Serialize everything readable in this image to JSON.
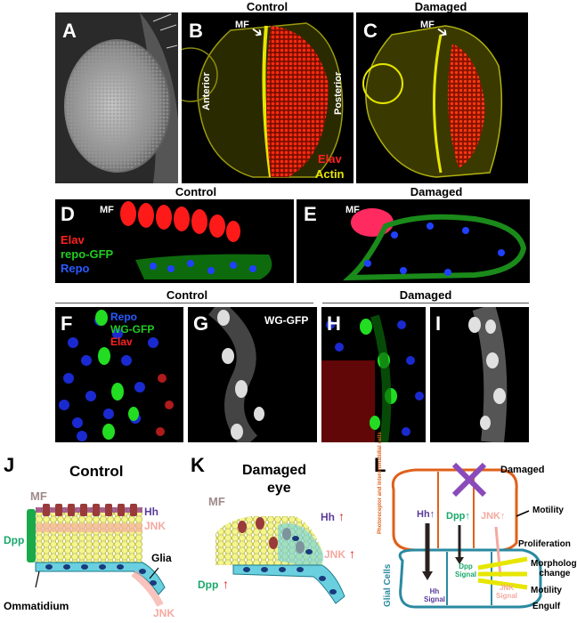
{
  "figure": {
    "panels": {
      "A": "A",
      "B": "B",
      "C": "C",
      "D": "D",
      "E": "E",
      "F": "F",
      "G": "G",
      "H": "H",
      "I": "I",
      "J": "J",
      "K": "K",
      "L": "L"
    },
    "headers": {
      "control_top": "Control",
      "damaged_top": "Damaged",
      "control_de": "Control",
      "damaged_de": "Damaged",
      "control_fg": "Control",
      "damaged_hi": "Damaged"
    },
    "panel_b": {
      "mf": "MF",
      "anterior": "Anterior",
      "posterior": "Posterior",
      "elav": "Elav",
      "actin": "Actin"
    },
    "panel_c": {
      "mf": "MF"
    },
    "panel_d": {
      "mf": "MF",
      "elav": "Elav",
      "repo_gfp": "repo-GFP",
      "repo": "Repo"
    },
    "panel_e": {
      "mf": "MF"
    },
    "panel_f": {
      "repo": "Repo",
      "wg_gfp": "WG-GFP",
      "elav": "Elav"
    },
    "panel_g": {
      "wg_gfp": "WG-GFP"
    },
    "panel_j": {
      "title": "Control",
      "mf": "MF",
      "hh": "Hh",
      "jnk": "JNK",
      "dpp": "Dpp",
      "glia": "Glia",
      "ommatidium": "Ommatidium",
      "jnk_bottom": "JNK"
    },
    "panel_k": {
      "title_line1": "Damaged",
      "title_line2": "eye",
      "mf": "MF",
      "hh": "Hh",
      "jnk": "JNK",
      "dpp": "Dpp",
      "arrow": "↑"
    },
    "panel_l": {
      "damaged": "Damaged",
      "photoreceptor_label": "Photoreceptor and interommatidial cells",
      "glial_cells": "Glial Cells",
      "hh": "Hh↑",
      "dpp": "Dpp↑",
      "jnk": "JNK↑",
      "hh_signal": "Hh Signal",
      "dpp_signal": "Dpp Signal",
      "jnk_signal": "JNK Signal",
      "motility_top": "Motility",
      "proliferation": "Proliferation",
      "morphology": "Morphology change",
      "motility": "Motility",
      "engulf": "Engulf"
    },
    "colors": {
      "elav": "#ff2020",
      "actin": "#e6e600",
      "gfp": "#22cc22",
      "repo": "#2040ff",
      "hh": "#5a3c9a",
      "dpp": "#1aa86a",
      "jnk": "#f4a9a0",
      "mf": "#a08a8a",
      "glia": "#5bc8dc"
    }
  }
}
